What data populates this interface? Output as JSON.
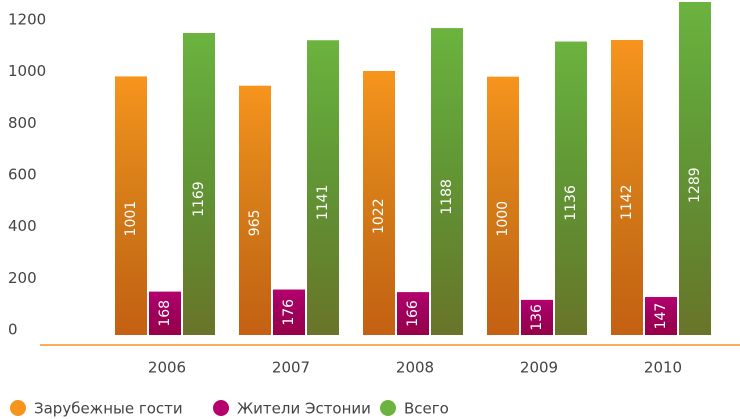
{
  "chart_data": {
    "type": "bar",
    "categories": [
      "2006",
      "2007",
      "2008",
      "2009",
      "2010"
    ],
    "series": [
      {
        "name": "Зарубежные гости",
        "color": "#f7941d",
        "values": [
          1001,
          965,
          1022,
          1000,
          1142
        ]
      },
      {
        "name": "Жители Эстонии",
        "color": "#b5006e",
        "values": [
          168,
          176,
          166,
          136,
          147
        ]
      },
      {
        "name": "Всего",
        "color": "#6cb33f",
        "values": [
          1169,
          1141,
          1188,
          1136,
          1289
        ]
      }
    ],
    "ylim": [
      0,
      1200
    ],
    "yticks": [
      0,
      200,
      400,
      600,
      800,
      1000,
      1200
    ],
    "grid": false,
    "legend": "bottom"
  }
}
